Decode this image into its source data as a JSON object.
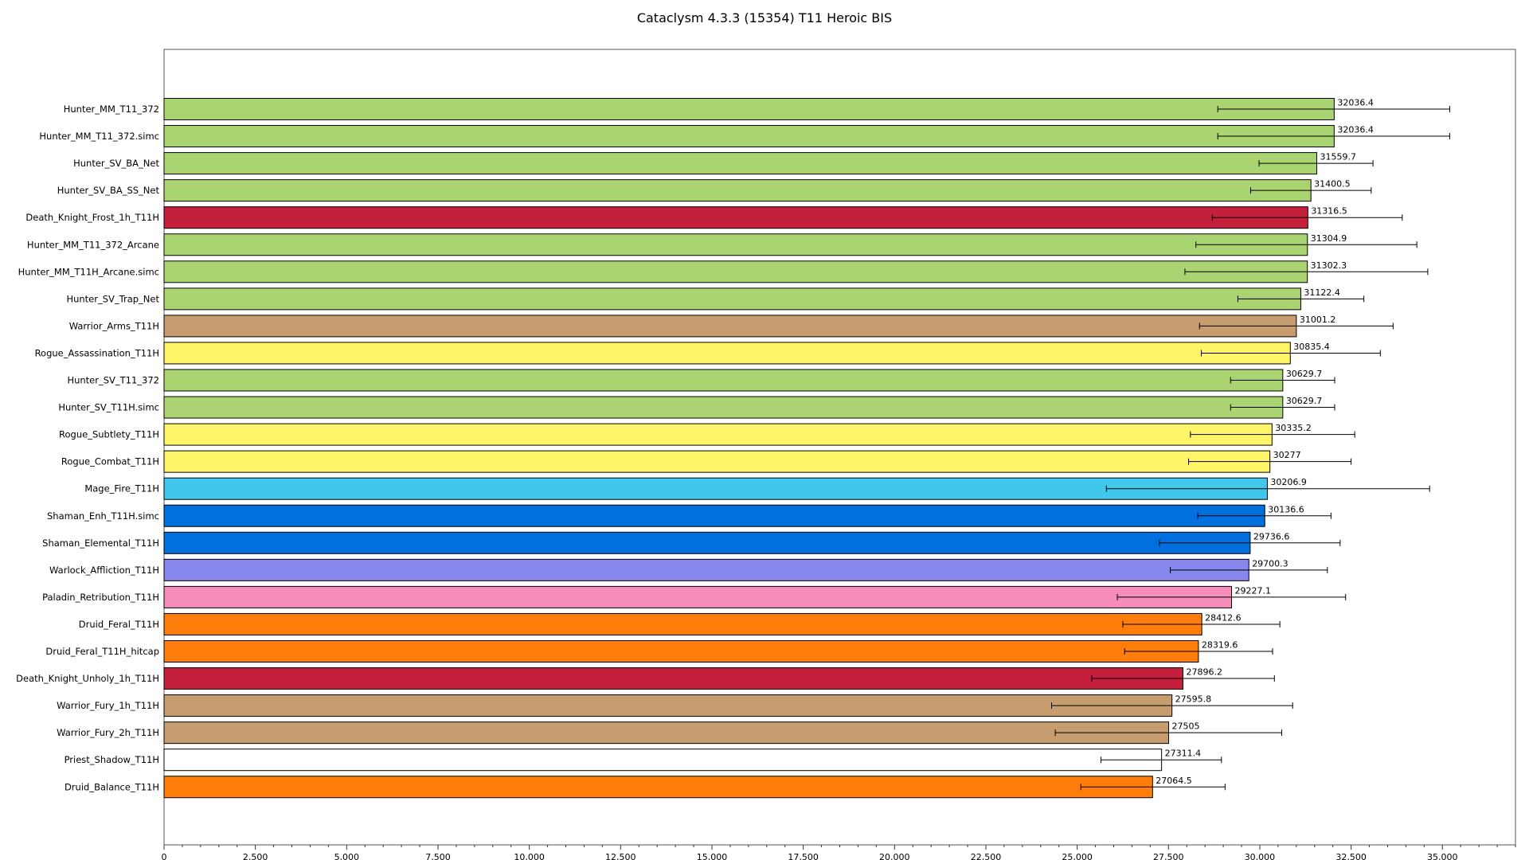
{
  "chart_data": {
    "type": "bar",
    "orientation": "horizontal",
    "title": "Cataclysm 4.3.3 (15354) T11 Heroic BIS",
    "xlabel": "",
    "ylabel": "",
    "xlim": [
      0,
      37000
    ],
    "ticks": [
      0,
      2500,
      5000,
      7500,
      10000,
      12500,
      15000,
      17500,
      20000,
      22500,
      25000,
      27500,
      30000,
      32500,
      35000
    ],
    "tick_labels": [
      "0",
      "2,500",
      "5,000",
      "7,500",
      "10,000",
      "12,500",
      "15,000",
      "17,500",
      "20,000",
      "22,500",
      "25,000",
      "27,500",
      "30,000",
      "32,500",
      "35,000"
    ],
    "minor_tick_step": 500,
    "grid": false,
    "legend": "none",
    "bars": [
      {
        "label": "Hunter_MM_T11_372",
        "value": 32036.4,
        "value_label": "32036.4",
        "err_low": 28850,
        "err_high": 35200,
        "color": "#aad372"
      },
      {
        "label": "Hunter_MM_T11_372.simc",
        "value": 32036.4,
        "value_label": "32036.4",
        "err_low": 28850,
        "err_high": 35200,
        "color": "#aad372"
      },
      {
        "label": "Hunter_SV_BA_Net",
        "value": 31559.7,
        "value_label": "31559.7",
        "err_low": 29980,
        "err_high": 33100,
        "color": "#aad372"
      },
      {
        "label": "Hunter_SV_BA_SS_Net",
        "value": 31400.5,
        "value_label": "31400.5",
        "err_low": 29750,
        "err_high": 33050,
        "color": "#aad372"
      },
      {
        "label": "Death_Knight_Frost_1h_T11H",
        "value": 31316.5,
        "value_label": "31316.5",
        "err_low": 28700,
        "err_high": 33900,
        "color": "#c41f3b"
      },
      {
        "label": "Hunter_MM_T11_372_Arcane",
        "value": 31304.9,
        "value_label": "31304.9",
        "err_low": 28250,
        "err_high": 34300,
        "color": "#aad372"
      },
      {
        "label": "Hunter_MM_T11H_Arcane.simc",
        "value": 31302.3,
        "value_label": "31302.3",
        "err_low": 27950,
        "err_high": 34600,
        "color": "#aad372"
      },
      {
        "label": "Hunter_SV_Trap_Net",
        "value": 31122.4,
        "value_label": "31122.4",
        "err_low": 29400,
        "err_high": 32850,
        "color": "#aad372"
      },
      {
        "label": "Warrior_Arms_T11H",
        "value": 31001.2,
        "value_label": "31001.2",
        "err_low": 28350,
        "err_high": 33650,
        "color": "#c79c6e"
      },
      {
        "label": "Rogue_Assassination_T11H",
        "value": 30835.4,
        "value_label": "30835.4",
        "err_low": 28400,
        "err_high": 33300,
        "color": "#fff569"
      },
      {
        "label": "Hunter_SV_T11_372",
        "value": 30629.7,
        "value_label": "30629.7",
        "err_low": 29200,
        "err_high": 32050,
        "color": "#aad372"
      },
      {
        "label": "Hunter_SV_T11H.simc",
        "value": 30629.7,
        "value_label": "30629.7",
        "err_low": 29200,
        "err_high": 32050,
        "color": "#aad372"
      },
      {
        "label": "Rogue_Subtlety_T11H",
        "value": 30335.2,
        "value_label": "30335.2",
        "err_low": 28100,
        "err_high": 32600,
        "color": "#fff569"
      },
      {
        "label": "Rogue_Combat_T11H",
        "value": 30277,
        "value_label": "30277",
        "err_low": 28050,
        "err_high": 32500,
        "color": "#fff569"
      },
      {
        "label": "Mage_Fire_T11H",
        "value": 30206.9,
        "value_label": "30206.9",
        "err_low": 25800,
        "err_high": 34650,
        "color": "#40c7eb"
      },
      {
        "label": "Shaman_Enh_T11H.simc",
        "value": 30136.6,
        "value_label": "30136.6",
        "err_low": 28300,
        "err_high": 31950,
        "color": "#0070de"
      },
      {
        "label": "Shaman_Elemental_T11H",
        "value": 29736.6,
        "value_label": "29736.6",
        "err_low": 27250,
        "err_high": 32200,
        "color": "#0070de"
      },
      {
        "label": "Warlock_Affliction_T11H",
        "value": 29700.3,
        "value_label": "29700.3",
        "err_low": 27550,
        "err_high": 31850,
        "color": "#8787ed"
      },
      {
        "label": "Paladin_Retribution_T11H",
        "value": 29227.1,
        "value_label": "29227.1",
        "err_low": 26100,
        "err_high": 32350,
        "color": "#f58cba"
      },
      {
        "label": "Druid_Feral_T11H",
        "value": 28412.6,
        "value_label": "28412.6",
        "err_low": 26250,
        "err_high": 30550,
        "color": "#ff7d0a"
      },
      {
        "label": "Druid_Feral_T11H_hitcap",
        "value": 28319.6,
        "value_label": "28319.6",
        "err_low": 26300,
        "err_high": 30350,
        "color": "#ff7d0a"
      },
      {
        "label": "Death_Knight_Unholy_1h_T11H",
        "value": 27896.2,
        "value_label": "27896.2",
        "err_low": 25400,
        "err_high": 30400,
        "color": "#c41f3b"
      },
      {
        "label": "Warrior_Fury_1h_T11H",
        "value": 27595.8,
        "value_label": "27595.8",
        "err_low": 24300,
        "err_high": 30900,
        "color": "#c79c6e"
      },
      {
        "label": "Warrior_Fury_2h_T11H",
        "value": 27505,
        "value_label": "27505",
        "err_low": 24400,
        "err_high": 30600,
        "color": "#c79c6e"
      },
      {
        "label": "Priest_Shadow_T11H",
        "value": 27311.4,
        "value_label": "27311.4",
        "err_low": 25650,
        "err_high": 28950,
        "color": "#ffffff"
      },
      {
        "label": "Druid_Balance_T11H",
        "value": 27064.5,
        "value_label": "27064.5",
        "err_low": 25100,
        "err_high": 29050,
        "color": "#ff7d0a"
      }
    ]
  }
}
